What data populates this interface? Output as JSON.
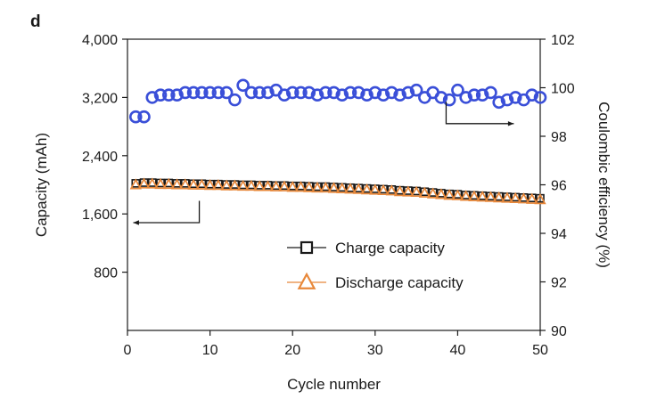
{
  "panel_label": "d",
  "chart_data": {
    "type": "scatter",
    "title": "",
    "xlabel": "Cycle number",
    "ylabel_left": "Capacity (mAh)",
    "ylabel_right": "Coulombic efficiency (%)",
    "xlim": [
      0,
      50
    ],
    "ylim_left": [
      0,
      4000
    ],
    "ylim_right": [
      90,
      102
    ],
    "x_ticks": [
      "0",
      "10",
      "20",
      "30",
      "40",
      "50"
    ],
    "y_left_ticks": [
      "800",
      "1,600",
      "2,400",
      "3,200",
      "4,000"
    ],
    "y_right_ticks": [
      "90",
      "92",
      "94",
      "96",
      "98",
      "100",
      "102"
    ],
    "grid": false,
    "legend_position": "lower-middle",
    "colors": {
      "charge": "#1a1a1a",
      "discharge": "#e8883a",
      "efficiency": "#3a4fd8"
    },
    "x": [
      1,
      2,
      3,
      4,
      5,
      6,
      7,
      8,
      9,
      10,
      11,
      12,
      13,
      14,
      15,
      16,
      17,
      18,
      19,
      20,
      21,
      22,
      23,
      24,
      25,
      26,
      27,
      28,
      29,
      30,
      31,
      32,
      33,
      34,
      35,
      36,
      37,
      38,
      39,
      40,
      41,
      42,
      43,
      44,
      45,
      46,
      47,
      48,
      49,
      50
    ],
    "series": [
      {
        "name": "Charge capacity",
        "axis": "left",
        "marker": "square",
        "values": [
          2020,
          2030,
          2030,
          2025,
          2025,
          2020,
          2020,
          2015,
          2015,
          2010,
          2010,
          2005,
          2005,
          2000,
          2000,
          1995,
          1995,
          1990,
          1990,
          1985,
          1985,
          1980,
          1975,
          1975,
          1970,
          1965,
          1960,
          1955,
          1950,
          1945,
          1940,
          1935,
          1925,
          1920,
          1915,
          1905,
          1895,
          1885,
          1875,
          1870,
          1860,
          1855,
          1850,
          1845,
          1840,
          1835,
          1830,
          1825,
          1820,
          1815
        ]
      },
      {
        "name": "Discharge capacity",
        "axis": "left",
        "marker": "triangle",
        "values": [
          2000,
          2010,
          2010,
          2005,
          2005,
          2000,
          2000,
          1995,
          1995,
          1990,
          1990,
          1985,
          1985,
          1980,
          1980,
          1975,
          1975,
          1970,
          1970,
          1965,
          1965,
          1960,
          1955,
          1955,
          1950,
          1945,
          1940,
          1935,
          1930,
          1925,
          1920,
          1915,
          1905,
          1900,
          1895,
          1885,
          1875,
          1865,
          1855,
          1850,
          1840,
          1835,
          1830,
          1825,
          1820,
          1815,
          1810,
          1805,
          1800,
          1795
        ]
      },
      {
        "axis": "right",
        "marker": "circle",
        "values": [
          98.8,
          98.8,
          99.6,
          99.7,
          99.7,
          99.7,
          99.8,
          99.8,
          99.8,
          99.8,
          99.8,
          99.8,
          99.5,
          100.1,
          99.8,
          99.8,
          99.8,
          99.9,
          99.7,
          99.8,
          99.8,
          99.8,
          99.7,
          99.8,
          99.8,
          99.7,
          99.8,
          99.8,
          99.7,
          99.8,
          99.7,
          99.8,
          99.7,
          99.8,
          99.9,
          99.6,
          99.8,
          99.6,
          99.5,
          99.9,
          99.6,
          99.7,
          99.7,
          99.8,
          99.4,
          99.5,
          99.6,
          99.5,
          99.7,
          99.6
        ]
      }
    ]
  }
}
